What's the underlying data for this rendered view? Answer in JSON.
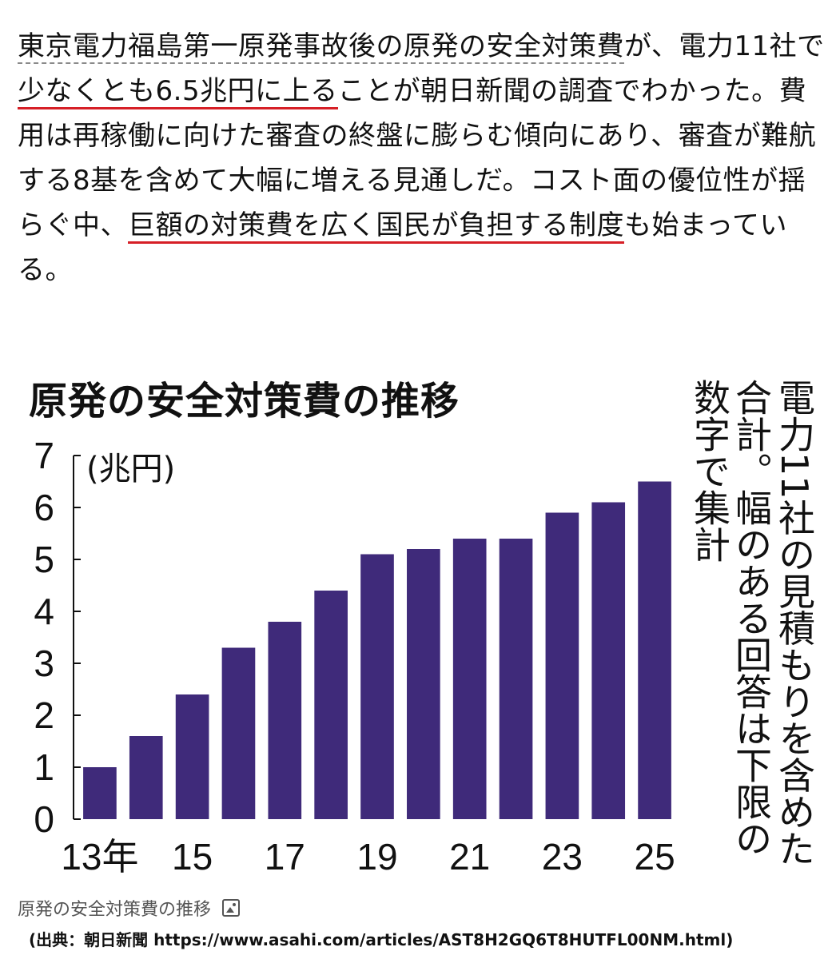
{
  "article": {
    "s1": "東京電力福島第一原発事故後の原発の安全対策費",
    "s2": "が、電力11社で",
    "s3": "少なくとも6.5兆円に上る",
    "s4": "ことが朝日新聞の調査でわかった。費用は再稼働に向けた審査の終盤に膨らむ傾向にあり、審査が難航する8基を含めて大幅に増える見通しだ。コスト面の優位性が揺らぐ中、",
    "s5": "巨額の対策費を広く国民が負担する制度",
    "s6": "も始まっている。",
    "underline_color": "#d61f26"
  },
  "chart_data": {
    "type": "bar",
    "title": "原発の安全対策費の推移",
    "ylabel": "(兆円)",
    "ylim": [
      0,
      7
    ],
    "y_ticks": [
      "0",
      "1",
      "2",
      "3",
      "4",
      "5",
      "6",
      "7"
    ],
    "categories": [
      "2013",
      "2014",
      "2015",
      "2016",
      "2017",
      "2018",
      "2019",
      "2020",
      "2021",
      "2022",
      "2023",
      "2024",
      "2025"
    ],
    "x_tick_labels": [
      "13年",
      "",
      "15",
      "",
      "17",
      "",
      "19",
      "",
      "21",
      "",
      "23",
      "",
      "25"
    ],
    "values": [
      1.0,
      1.6,
      2.4,
      3.3,
      3.8,
      4.4,
      5.1,
      5.2,
      5.4,
      5.4,
      5.9,
      6.1,
      6.5
    ],
    "bar_color": "#3f2a7a",
    "note_lines": [
      "電力11社の見積もりを含めた",
      "合計。幅のある回答は下限の",
      "数字で集計"
    ],
    "grid": false,
    "legend": "none"
  },
  "caption": {
    "text": "原発の安全対策費の推移",
    "icon": "image-icon"
  },
  "source": "(出典：朝日新聞 https://www.asahi.com/articles/AST8H2GQ6T8HUTFL00NM.html)"
}
